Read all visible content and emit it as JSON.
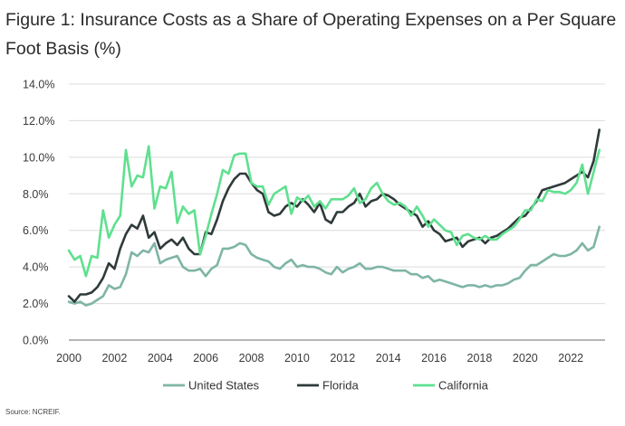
{
  "chart_data": {
    "type": "line",
    "title": "Figure 1: Insurance Costs as a Share of Operating Expenses on a Per Square Foot Basis (%)",
    "xlabel": "",
    "ylabel": "",
    "xlim": [
      2000,
      2023.5
    ],
    "ylim": [
      0,
      14
    ],
    "yticks": [
      "0.0%",
      "2.0%",
      "4.0%",
      "6.0%",
      "8.0%",
      "10.0%",
      "12.0%",
      "14.0%"
    ],
    "yticks_values": [
      0,
      2,
      4,
      6,
      8,
      10,
      12,
      14
    ],
    "xticks": [
      "2000",
      "2002",
      "2004",
      "2006",
      "2008",
      "2010",
      "2012",
      "2014",
      "2016",
      "2018",
      "2020",
      "2022"
    ],
    "xticks_values": [
      2000,
      2002,
      2004,
      2006,
      2008,
      2010,
      2012,
      2014,
      2016,
      2018,
      2020,
      2022
    ],
    "grid": "horizontal",
    "legend_position": "bottom",
    "series": [
      {
        "name": "United States",
        "color": "#7fb5a6",
        "x": [
          2000.0,
          2000.25,
          2000.5,
          2000.75,
          2001.0,
          2001.25,
          2001.5,
          2001.75,
          2002.0,
          2002.25,
          2002.5,
          2002.75,
          2003.0,
          2003.25,
          2003.5,
          2003.75,
          2004.0,
          2004.25,
          2004.5,
          2004.75,
          2005.0,
          2005.25,
          2005.5,
          2005.75,
          2006.0,
          2006.25,
          2006.5,
          2006.75,
          2007.0,
          2007.25,
          2007.5,
          2007.75,
          2008.0,
          2008.25,
          2008.5,
          2008.75,
          2009.0,
          2009.25,
          2009.5,
          2009.75,
          2010.0,
          2010.25,
          2010.5,
          2010.75,
          2011.0,
          2011.25,
          2011.5,
          2011.75,
          2012.0,
          2012.25,
          2012.5,
          2012.75,
          2013.0,
          2013.25,
          2013.5,
          2013.75,
          2014.0,
          2014.25,
          2014.5,
          2014.75,
          2015.0,
          2015.25,
          2015.5,
          2015.75,
          2016.0,
          2016.25,
          2016.5,
          2016.75,
          2017.0,
          2017.25,
          2017.5,
          2017.75,
          2018.0,
          2018.25,
          2018.5,
          2018.75,
          2019.0,
          2019.25,
          2019.5,
          2019.75,
          2020.0,
          2020.25,
          2020.5,
          2020.75,
          2021.0,
          2021.25,
          2021.5,
          2021.75,
          2022.0,
          2022.25,
          2022.5,
          2022.75,
          2023.0,
          2023.25
        ],
        "values": [
          2.1,
          2.0,
          2.1,
          1.9,
          2.0,
          2.2,
          2.4,
          3.0,
          2.8,
          2.9,
          3.6,
          4.8,
          4.6,
          4.9,
          4.8,
          5.3,
          4.2,
          4.4,
          4.5,
          4.6,
          4.0,
          3.8,
          3.8,
          3.9,
          3.5,
          3.9,
          4.1,
          5.0,
          5.0,
          5.1,
          5.3,
          5.2,
          4.7,
          4.5,
          4.4,
          4.3,
          4.0,
          3.9,
          4.2,
          4.4,
          4.0,
          4.1,
          4.0,
          4.0,
          3.9,
          3.7,
          3.6,
          4.0,
          3.7,
          3.9,
          4.0,
          4.2,
          3.9,
          3.9,
          4.0,
          4.0,
          3.9,
          3.8,
          3.8,
          3.8,
          3.6,
          3.6,
          3.4,
          3.5,
          3.2,
          3.3,
          3.2,
          3.1,
          3.0,
          2.9,
          3.0,
          3.0,
          2.9,
          3.0,
          2.9,
          3.0,
          3.0,
          3.1,
          3.3,
          3.4,
          3.8,
          4.1,
          4.1,
          4.3,
          4.5,
          4.7,
          4.6,
          4.6,
          4.7,
          4.9,
          5.3,
          4.9,
          5.1,
          6.2
        ]
      },
      {
        "name": "Florida",
        "color": "#2f3a3a",
        "x": [
          2000.0,
          2000.25,
          2000.5,
          2000.75,
          2001.0,
          2001.25,
          2001.5,
          2001.75,
          2002.0,
          2002.25,
          2002.5,
          2002.75,
          2003.0,
          2003.25,
          2003.5,
          2003.75,
          2004.0,
          2004.25,
          2004.5,
          2004.75,
          2005.0,
          2005.25,
          2005.5,
          2005.75,
          2006.0,
          2006.25,
          2006.5,
          2006.75,
          2007.0,
          2007.25,
          2007.5,
          2007.75,
          2008.0,
          2008.25,
          2008.5,
          2008.75,
          2009.0,
          2009.25,
          2009.5,
          2009.75,
          2010.0,
          2010.25,
          2010.5,
          2010.75,
          2011.0,
          2011.25,
          2011.5,
          2011.75,
          2012.0,
          2012.25,
          2012.5,
          2012.75,
          2013.0,
          2013.25,
          2013.5,
          2013.75,
          2014.0,
          2014.25,
          2014.5,
          2014.75,
          2015.0,
          2015.25,
          2015.5,
          2015.75,
          2016.0,
          2016.25,
          2016.5,
          2016.75,
          2017.0,
          2017.25,
          2017.5,
          2017.75,
          2018.0,
          2018.25,
          2018.5,
          2018.75,
          2019.0,
          2019.25,
          2019.5,
          2019.75,
          2020.0,
          2020.25,
          2020.5,
          2020.75,
          2021.0,
          2021.25,
          2021.5,
          2021.75,
          2022.0,
          2022.25,
          2022.5,
          2022.75,
          2023.0,
          2023.25
        ],
        "values": [
          2.4,
          2.1,
          2.5,
          2.5,
          2.6,
          2.9,
          3.4,
          4.2,
          3.9,
          5.0,
          5.8,
          6.3,
          6.1,
          6.8,
          5.6,
          5.9,
          5.0,
          5.3,
          5.5,
          5.2,
          5.6,
          5.0,
          4.7,
          4.7,
          5.9,
          5.8,
          6.6,
          7.6,
          8.3,
          8.8,
          9.1,
          9.1,
          8.6,
          8.2,
          8.0,
          7.0,
          6.8,
          6.9,
          7.3,
          7.5,
          7.3,
          7.7,
          7.4,
          7.0,
          7.5,
          6.6,
          6.4,
          7.0,
          7.0,
          7.3,
          7.5,
          8.0,
          7.3,
          7.6,
          7.7,
          8.0,
          7.9,
          7.7,
          7.4,
          7.2,
          7.0,
          6.8,
          6.2,
          6.5,
          6.0,
          5.8,
          5.4,
          5.5,
          5.6,
          5.1,
          5.4,
          5.5,
          5.6,
          5.3,
          5.6,
          5.7,
          5.9,
          6.1,
          6.4,
          6.7,
          6.8,
          7.2,
          7.6,
          8.2,
          8.3,
          8.4,
          8.5,
          8.6,
          8.8,
          9.0,
          9.2,
          8.9,
          9.8,
          11.5
        ]
      },
      {
        "name": "California",
        "color": "#5fe08f",
        "x": [
          2000.0,
          2000.25,
          2000.5,
          2000.75,
          2001.0,
          2001.25,
          2001.5,
          2001.75,
          2002.0,
          2002.25,
          2002.5,
          2002.75,
          2003.0,
          2003.25,
          2003.5,
          2003.75,
          2004.0,
          2004.25,
          2004.5,
          2004.75,
          2005.0,
          2005.25,
          2005.5,
          2005.75,
          2006.0,
          2006.25,
          2006.5,
          2006.75,
          2007.0,
          2007.25,
          2007.5,
          2007.75,
          2008.0,
          2008.25,
          2008.5,
          2008.75,
          2009.0,
          2009.25,
          2009.5,
          2009.75,
          2010.0,
          2010.25,
          2010.5,
          2010.75,
          2011.0,
          2011.25,
          2011.5,
          2011.75,
          2012.0,
          2012.25,
          2012.5,
          2012.75,
          2013.0,
          2013.25,
          2013.5,
          2013.75,
          2014.0,
          2014.25,
          2014.5,
          2014.75,
          2015.0,
          2015.25,
          2015.5,
          2015.75,
          2016.0,
          2016.25,
          2016.5,
          2016.75,
          2017.0,
          2017.25,
          2017.5,
          2017.75,
          2018.0,
          2018.25,
          2018.5,
          2018.75,
          2019.0,
          2019.25,
          2019.5,
          2019.75,
          2020.0,
          2020.25,
          2020.5,
          2020.75,
          2021.0,
          2021.25,
          2021.5,
          2021.75,
          2022.0,
          2022.25,
          2022.5,
          2022.75,
          2023.0,
          2023.25
        ],
        "values": [
          4.9,
          4.4,
          4.6,
          3.5,
          4.6,
          4.5,
          7.1,
          5.6,
          6.3,
          6.8,
          10.4,
          8.4,
          9.0,
          8.9,
          10.6,
          7.2,
          8.4,
          8.3,
          9.2,
          6.4,
          7.3,
          6.9,
          7.1,
          4.7,
          5.7,
          6.9,
          8.0,
          9.3,
          9.1,
          10.1,
          10.2,
          10.2,
          8.6,
          8.4,
          8.4,
          7.4,
          8.0,
          8.2,
          8.4,
          6.9,
          7.8,
          7.6,
          7.9,
          7.3,
          7.6,
          7.2,
          7.7,
          7.7,
          7.7,
          7.9,
          8.3,
          7.5,
          7.7,
          8.3,
          8.6,
          8.0,
          7.6,
          7.4,
          7.5,
          7.3,
          6.8,
          7.3,
          6.8,
          6.2,
          6.6,
          6.3,
          6.0,
          5.9,
          5.2,
          5.7,
          5.8,
          5.6,
          5.5,
          5.7,
          5.5,
          5.5,
          5.8,
          6.0,
          6.2,
          6.6,
          7.1,
          7.1,
          7.7,
          7.6,
          8.2,
          8.1,
          8.1,
          8.0,
          8.2,
          8.6,
          9.6,
          8.0,
          9.2,
          10.4
        ]
      }
    ]
  },
  "source": "Source: NCREIF."
}
